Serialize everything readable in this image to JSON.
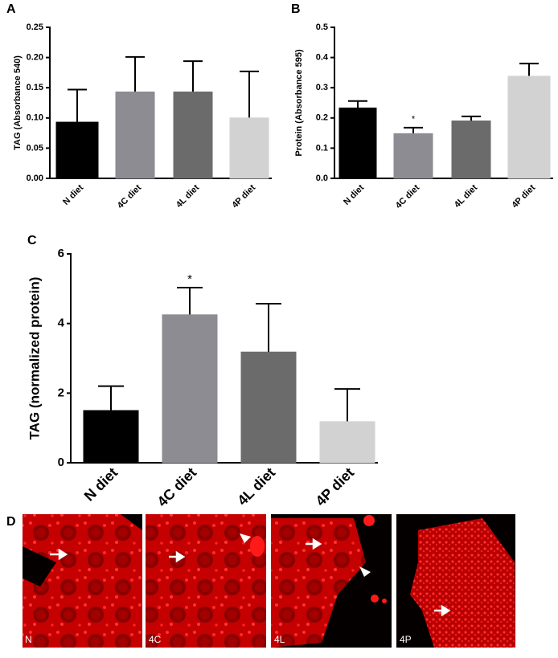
{
  "chart_data": [
    {
      "type": "bar",
      "panel": "A",
      "y_label": "TAG (Absorbance 540)",
      "categories": [
        "N diet",
        "4C diet",
        "4L diet",
        "4P diet"
      ],
      "values": [
        0.093,
        0.143,
        0.143,
        0.1
      ],
      "errors": [
        0.054,
        0.058,
        0.051,
        0.077
      ],
      "colors": [
        "#000000",
        "#8c8c92",
        "#6b6b6b",
        "#d2d2d2"
      ],
      "ylim": [
        0,
        0.25
      ],
      "yticks": [
        {
          "value": 0,
          "label": "0.00"
        },
        {
          "value": 0.05,
          "label": "0.05"
        },
        {
          "value": 0.1,
          "label": "0.10"
        },
        {
          "value": 0.15,
          "label": "0.15"
        },
        {
          "value": 0.2,
          "label": "0.20"
        },
        {
          "value": 0.25,
          "label": "0.25"
        }
      ]
    },
    {
      "type": "bar",
      "panel": "B",
      "y_label": "Protein (Absorbance 595)",
      "categories": [
        "N diet",
        "4C diet",
        "4L diet",
        "4P diet"
      ],
      "values": [
        0.233,
        0.148,
        0.19,
        0.338
      ],
      "errors": [
        0.023,
        0.02,
        0.015,
        0.042
      ],
      "value_annotations": [
        null,
        "*",
        null,
        null
      ],
      "colors": [
        "#000000",
        "#8c8c92",
        "#6b6b6b",
        "#d2d2d2"
      ],
      "ylim": [
        0,
        0.5
      ],
      "yticks": [
        {
          "value": 0,
          "label": "0.0"
        },
        0.1,
        0.2,
        0.3,
        0.4,
        0.5
      ]
    },
    {
      "type": "bar",
      "panel": "C",
      "y_label": "TAG (normalized protein)",
      "categories": [
        "N diet",
        "4C diet",
        "4L diet",
        "4P diet"
      ],
      "values": [
        1.5,
        4.25,
        3.18,
        1.18
      ],
      "errors": [
        0.7,
        0.78,
        1.39,
        0.94
      ],
      "value_annotations": [
        null,
        "*",
        null,
        null
      ],
      "colors": [
        "#000000",
        "#8c8c92",
        "#6b6b6b",
        "#d2d2d2"
      ],
      "ylim": [
        0,
        6
      ],
      "yticks": [
        0,
        2,
        4,
        6
      ]
    }
  ],
  "panel_d": {
    "panel": "D",
    "images": [
      "N",
      "4C",
      "4L",
      "4P"
    ]
  }
}
